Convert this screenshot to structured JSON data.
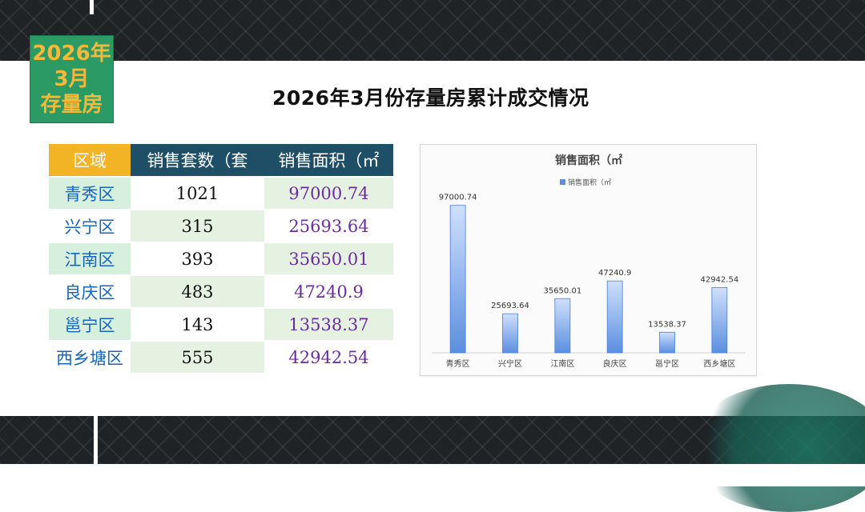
{
  "badge": {
    "line1": "2026年",
    "line2": "3月",
    "line3": "存量房"
  },
  "title": "2026年3月份存量房累计成交情况",
  "table": {
    "headers": [
      "区域",
      "销售套数（套",
      "销售面积（㎡"
    ],
    "rows": [
      [
        "青秀区",
        "1021",
        "97000.74"
      ],
      [
        "兴宁区",
        "315",
        "25693.64"
      ],
      [
        "江南区",
        "393",
        "35650.01"
      ],
      [
        "良庆区",
        "483",
        "47240.9"
      ],
      [
        "邕宁区",
        "143",
        "13538.37"
      ],
      [
        "西乡塘区",
        "555",
        "42942.54"
      ]
    ]
  },
  "chart_data": {
    "type": "bar",
    "title": "销售面积（㎡",
    "legend": "销售面积（㎡",
    "legend_position": "top",
    "categories": [
      "青秀区",
      "兴宁区",
      "江南区",
      "良庆区",
      "邕宁区",
      "西乡塘区"
    ],
    "series": [
      {
        "name": "销售面积（㎡",
        "values": [
          97000.74,
          25693.64,
          35650.01,
          47240.9,
          13538.37,
          42942.54
        ]
      }
    ],
    "data_labels": [
      "97000.74",
      "25693.64",
      "35650.01",
      "47240.9",
      "13538.37",
      "42942.54"
    ],
    "ylim": [
      0,
      100000
    ],
    "grid": false,
    "bar_color": "#5b8fe0"
  }
}
